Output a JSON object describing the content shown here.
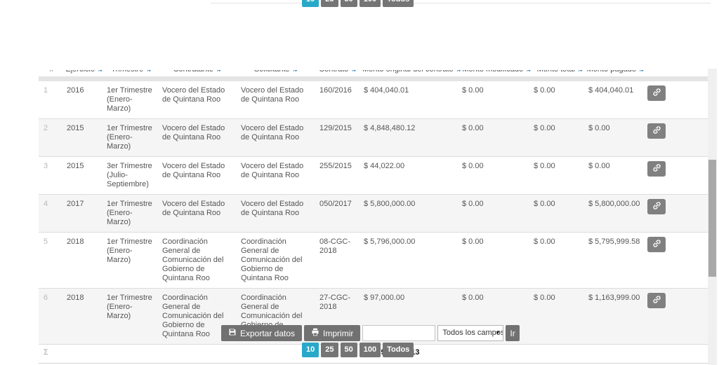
{
  "table": {
    "columns": [
      {
        "key": "num",
        "label": "#",
        "sortable": false
      },
      {
        "key": "ejercicio",
        "label": "Ejercicio",
        "sortable": true
      },
      {
        "key": "trimestre",
        "label": "Trimestre",
        "sortable": true
      },
      {
        "key": "contratante",
        "label": "Contratante",
        "sortable": true
      },
      {
        "key": "solicitante",
        "label": "Solicitante",
        "sortable": true
      },
      {
        "key": "contrato",
        "label": "Contrato",
        "sortable": true
      },
      {
        "key": "monto_original",
        "label": "Monto original del contrato",
        "sortable": true
      },
      {
        "key": "monto_modificado",
        "label": "Monto modificado",
        "sortable": true
      },
      {
        "key": "monto_total",
        "label": "Monto total",
        "sortable": true
      },
      {
        "key": "monto_pagado",
        "label": "Monto pagado",
        "sortable": true
      },
      {
        "key": "acciones",
        "label": "",
        "sortable": false
      }
    ],
    "rows": [
      {
        "num": "1",
        "ejercicio": "2016",
        "trimestre": "1er Trimestre (Enero-Marzo)",
        "contratante": "Vocero del Estado de Quintana Roo",
        "solicitante": "Vocero del Estado de Quintana Roo",
        "contrato": "160/2016",
        "monto_original": "$ 404,040.01",
        "monto_modificado": "$ 0.00",
        "monto_total": "$ 0.00",
        "monto_pagado": "$ 404,040.01"
      },
      {
        "num": "2",
        "ejercicio": "2015",
        "trimestre": "1er Trimestre (Enero-Marzo)",
        "contratante": "Vocero del Estado de Quintana Roo",
        "solicitante": "Vocero del Estado de Quintana Roo",
        "contrato": "129/2015",
        "monto_original": "$ 4,848,480.12",
        "monto_modificado": "$ 0.00",
        "monto_total": "$ 0.00",
        "monto_pagado": "$ 0.00"
      },
      {
        "num": "3",
        "ejercicio": "2015",
        "trimestre": "3er Trimestre (Julio-Septiembre)",
        "contratante": "Vocero del Estado de Quintana Roo",
        "solicitante": "Vocero del Estado de Quintana Roo",
        "contrato": "255/2015",
        "monto_original": "$ 44,022.00",
        "monto_modificado": "$ 0.00",
        "monto_total": "$ 0.00",
        "monto_pagado": "$ 0.00"
      },
      {
        "num": "4",
        "ejercicio": "2017",
        "trimestre": "1er Trimestre (Enero-Marzo)",
        "contratante": "Vocero del Estado de Quintana Roo",
        "solicitante": "Vocero del Estado de Quintana Roo",
        "contrato": "050/2017",
        "monto_original": "$ 5,800,000.00",
        "monto_modificado": "$ 0.00",
        "monto_total": "$ 0.00",
        "monto_pagado": "$ 5,800,000.00"
      },
      {
        "num": "5",
        "ejercicio": "2018",
        "trimestre": "1er Trimestre (Enero-Marzo)",
        "contratante": "Coordinación General de Comunicación del Gobierno de Quintana Roo",
        "solicitante": "Coordinación General de Comunicación del Gobierno de Quintana Roo",
        "contrato": "08-CGC-2018",
        "monto_original": "$ 5,796,000.00",
        "monto_modificado": "$ 0.00",
        "monto_total": "$ 0.00",
        "monto_pagado": "$ 5,795,999.58"
      },
      {
        "num": "6",
        "ejercicio": "2018",
        "trimestre": "1er Trimestre (Enero-Marzo)",
        "contratante": "Coordinación General de Comunicación del Gobierno de Quintana Roo",
        "solicitante": "Coordinación General de Comunicación del Gobierno de Quintana Roo",
        "contrato": "27-CGC-2018",
        "monto_original": "$ 97,000.00",
        "monto_modificado": "$ 0.00",
        "monto_total": "$ 0.00",
        "monto_pagado": "$ 1,163,999.00"
      }
    ],
    "summary": {
      "sigma": "Σ",
      "total": "$ 16,989,542.13"
    }
  },
  "toolbar": {
    "export_label": "Exportar datos",
    "print_label": "Imprimir",
    "search_value": "",
    "search_placeholder": "",
    "filter_selected": "Todos los campos",
    "go_label": "Ir"
  },
  "pagination": {
    "options": [
      "10",
      "25",
      "50",
      "100",
      "Todos"
    ],
    "active": "10"
  },
  "icons": {
    "row_action": "link-icon",
    "export": "save-icon",
    "print": "printer-icon",
    "header_sort": "sort-icon"
  },
  "colors": {
    "accent": "#29a9c9",
    "button_gray": "#717171",
    "sort_icon": "#3f8ab8",
    "row_alt": "#f5f5f5"
  }
}
